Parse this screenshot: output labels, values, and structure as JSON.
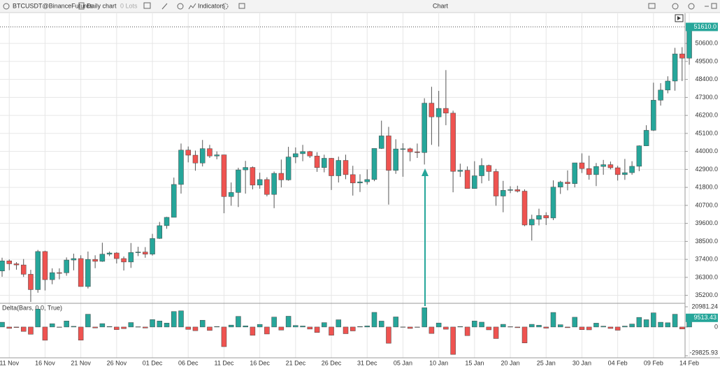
{
  "toolbar": {
    "symbol": "BTCUSDT@BinanceFutures",
    "timeframe": "Daily chart",
    "lots": "0 Lots",
    "indicators": "Indicators",
    "window_title": "Chart"
  },
  "chart_data": {
    "type": "candlestick",
    "categories": [
      null,
      "11 Nov",
      null,
      null,
      null,
      null,
      "16 Nov",
      null,
      null,
      null,
      null,
      "21 Nov",
      null,
      null,
      null,
      null,
      "26 Nov",
      null,
      null,
      null,
      null,
      "01 Dec",
      null,
      null,
      null,
      null,
      "06 Dec",
      null,
      null,
      null,
      null,
      "11 Dec",
      null,
      null,
      null,
      null,
      "16 Dec",
      null,
      null,
      null,
      null,
      "21 Dec",
      null,
      null,
      null,
      null,
      "26 Dec",
      null,
      null,
      null,
      null,
      "31 Dec",
      null,
      null,
      null,
      null,
      "05 Jan",
      null,
      null,
      null,
      null,
      "10 Jan",
      null,
      null,
      null,
      null,
      "15 Jan",
      null,
      null,
      null,
      null,
      "20 Jan",
      null,
      null,
      null,
      null,
      "25 Jan",
      null,
      null,
      null,
      null,
      "30 Jan",
      null,
      null,
      null,
      null,
      "04 Feb",
      null,
      null,
      null,
      null,
      "09 Feb",
      null,
      null,
      null,
      null,
      "14 Feb"
    ],
    "open": [
      36690,
      37310,
      37130,
      37060,
      36490,
      35550,
      37880,
      36160,
      36590,
      36580,
      37360,
      37450,
      35740,
      37400,
      37280,
      37720,
      37790,
      37450,
      37240,
      37820,
      37850,
      37720,
      38680,
      39460,
      39970,
      41980,
      44080,
      43770,
      43290,
      44170,
      43720,
      43790,
      41240,
      41490,
      42870,
      43020,
      41940,
      42280,
      41370,
      42660,
      42260,
      43660,
      43860,
      43990,
      43720,
      43010,
      43580,
      42510,
      43450,
      42580,
      42070,
      42140,
      42280,
      44180,
      44950,
      42840,
      44150,
      44160,
      43970,
      43930,
      46950,
      46110,
      46630,
      46340,
      42780,
      42850,
      41730,
      42510,
      43140,
      42770,
      41270,
      41620,
      41660,
      41570,
      39500,
      39850,
      40080,
      39930,
      41820,
      42120,
      42030,
      43300,
      42950,
      42580,
      43080,
      43190,
      43000,
      42580,
      42700,
      43090,
      44340,
      45290,
      47130,
      47750,
      48300,
      49960,
      49700
    ],
    "high": [
      37500,
      37400,
      37230,
      37420,
      36760,
      37980,
      37930,
      36850,
      36850,
      37520,
      37750,
      37650,
      37880,
      37650,
      38420,
      37880,
      37840,
      37580,
      38400,
      38170,
      38150,
      38960,
      39690,
      40000,
      42400,
      44480,
      44300,
      44050,
      44700,
      44400,
      44000,
      43800,
      42100,
      43000,
      43420,
      43080,
      42700,
      42420,
      42770,
      43500,
      44280,
      44240,
      44400,
      44030,
      43950,
      43800,
      43600,
      43680,
      43800,
      43120,
      42600,
      42900,
      44180,
      45880,
      45500,
      44740,
      44500,
      44230,
      44480,
      47250,
      47950,
      47700,
      48970,
      46490,
      43250,
      43080,
      43400,
      43580,
      43190,
      42930,
      42200,
      41870,
      41900,
      41680,
      40130,
      40500,
      40280,
      42230,
      42200,
      42840,
      43300,
      43880,
      43740,
      43290,
      43480,
      43380,
      43120,
      43540,
      43400,
      44370,
      45600,
      48200,
      48170,
      48590,
      50330,
      50370,
      51800
    ],
    "low": [
      36340,
      36740,
      36770,
      36330,
      34800,
      35360,
      35500,
      35880,
      36180,
      36400,
      36730,
      35750,
      35620,
      36860,
      37250,
      37600,
      37150,
      36720,
      36880,
      37600,
      37500,
      37630,
      38650,
      39270,
      39970,
      41420,
      43330,
      42820,
      43080,
      43600,
      43520,
      40220,
      40680,
      40600,
      41420,
      41680,
      41720,
      41250,
      40530,
      41800,
      42210,
      43280,
      43400,
      43600,
      42750,
      42720,
      41640,
      42100,
      42300,
      41300,
      41520,
      41970,
      42180,
      44150,
      40750,
      42630,
      42450,
      43400,
      43600,
      43200,
      44400,
      44300,
      45600,
      41500,
      42440,
      41720,
      41720,
      42050,
      42200,
      40680,
      40280,
      41450,
      41490,
      39430,
      38550,
      39480,
      39500,
      39800,
      41400,
      41620,
      41800,
      42680,
      42270,
      41880,
      42570,
      42900,
      42220,
      42260,
      42570,
      42790,
      44330,
      45250,
      46800,
      47550,
      47710,
      48300,
      49300
    ],
    "close": [
      37310,
      37130,
      37060,
      36490,
      35550,
      37880,
      36160,
      36590,
      36580,
      37360,
      37450,
      35740,
      37400,
      37280,
      37720,
      37790,
      37450,
      37240,
      37820,
      37850,
      37720,
      38680,
      39460,
      39970,
      41980,
      44080,
      43770,
      43290,
      44170,
      43720,
      43790,
      41240,
      41490,
      42870,
      43020,
      41940,
      42280,
      41370,
      42660,
      42260,
      43660,
      43860,
      43990,
      43720,
      43010,
      43580,
      42510,
      43450,
      42580,
      42070,
      42140,
      42280,
      44180,
      44950,
      42840,
      44150,
      44160,
      43970,
      43930,
      46950,
      46110,
      46630,
      46340,
      42780,
      42850,
      41730,
      42510,
      43140,
      42770,
      41270,
      41620,
      41660,
      41570,
      39500,
      39850,
      40080,
      39930,
      41820,
      42120,
      42030,
      43300,
      42950,
      42580,
      43080,
      43190,
      43000,
      42580,
      42700,
      43090,
      44340,
      45290,
      47130,
      47750,
      48300,
      49960,
      49700,
      51610
    ],
    "last_label": "51610.0",
    "up_color": "#26a69a",
    "down_color": "#ef5350",
    "ylim": [
      34800,
      52400
    ],
    "yticks": [
      {
        "value": 35200,
        "label": "35200.0"
      },
      {
        "value": 36300,
        "label": "36300.0"
      },
      {
        "value": 37400,
        "label": "37400.0"
      },
      {
        "value": 38500,
        "label": "38500.0"
      },
      {
        "value": 39600,
        "label": "39600.0"
      },
      {
        "value": 40700,
        "label": "40700.0"
      },
      {
        "value": 41800,
        "label": "41800.0"
      },
      {
        "value": 42900,
        "label": "42900.0"
      },
      {
        "value": 44000,
        "label": "44000.0"
      },
      {
        "value": 45100,
        "label": "45100.0"
      },
      {
        "value": 46200,
        "label": "46200.0"
      },
      {
        "value": 47300,
        "label": "47300.0"
      },
      {
        "value": 48400,
        "label": "48400.0"
      },
      {
        "value": 49500,
        "label": "49500.0"
      },
      {
        "value": 50600,
        "label": "50600.0"
      }
    ],
    "grid": true,
    "delta": {
      "title": "Delta(Bars, 0.0, True)",
      "values": [
        4960,
        -1440,
        -560,
        -4560,
        -7520,
        18640,
        -13760,
        3440,
        -80,
        6240,
        720,
        -13680,
        13280,
        -960,
        3520,
        560,
        -2720,
        -1680,
        4640,
        240,
        -1040,
        7680,
        6240,
        4080,
        16080,
        16800,
        -2480,
        -3840,
        7040,
        -3600,
        560,
        -20400,
        2000,
        11040,
        1200,
        -8640,
        2720,
        -7280,
        10320,
        -3200,
        11200,
        1600,
        1040,
        -2160,
        -5680,
        4560,
        -8560,
        7520,
        -6960,
        -4080,
        560,
        1120,
        15200,
        6160,
        -16880,
        10480,
        80,
        -1520,
        -320,
        20000,
        -6720,
        4160,
        -2320,
        -28480,
        560,
        -8960,
        6240,
        5040,
        -2960,
        -12000,
        2800,
        320,
        -720,
        -16560,
        2800,
        1840,
        -1200,
        15120,
        2400,
        -720,
        10160,
        -2800,
        -2960,
        4000,
        880,
        -1520,
        -3360,
        960,
        3120,
        10000,
        7600,
        14720,
        4960,
        4400,
        13280,
        -2080,
        9513.43
      ],
      "ylim": [
        -29825.93,
        20981.24
      ],
      "yticks": [
        -29825.93,
        0,
        20981.24
      ]
    }
  }
}
